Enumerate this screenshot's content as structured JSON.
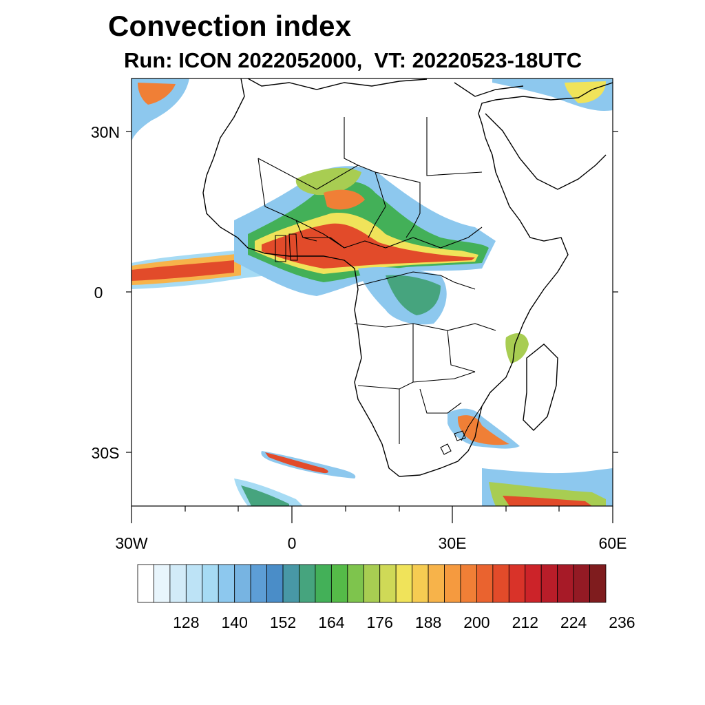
{
  "title": "Convection index",
  "subtitle": "Run: ICON 2022052000,  VT: 20220523-18UTC",
  "map": {
    "lat_labels": [
      "30N",
      "0",
      "30S"
    ],
    "lon_labels": [
      "30W",
      "0",
      "30E",
      "60E"
    ],
    "lat_values": [
      30,
      0,
      -30
    ],
    "lon_values": [
      -30,
      0,
      30,
      60
    ],
    "lat_range": [
      -40,
      40
    ],
    "lon_range": [
      -30,
      60
    ]
  },
  "colorbar": {
    "tick_labels": [
      "128",
      "140",
      "152",
      "164",
      "176",
      "188",
      "200",
      "212",
      "224",
      "236"
    ],
    "colors": [
      "#ffffff",
      "#e8f5fc",
      "#d2ebf8",
      "#bde3f6",
      "#a6dbf4",
      "#8dc8ee",
      "#77b4e2",
      "#5d9ed6",
      "#4a8dc8",
      "#4898a6",
      "#46a47e",
      "#43b058",
      "#55bb48",
      "#7ec44d",
      "#a8cd52",
      "#cfd957",
      "#f0e35a",
      "#f6cc52",
      "#f7b34a",
      "#f59a3f",
      "#f07f36",
      "#ea632f",
      "#e24b2a",
      "#d93329",
      "#cc2329",
      "#b91d29",
      "#a71a27",
      "#931a24",
      "#7f1c1e"
    ]
  }
}
